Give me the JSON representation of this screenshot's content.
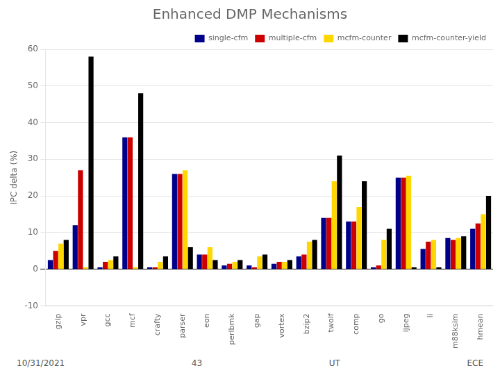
{
  "chart_data": {
    "type": "bar",
    "title": "Enhanced DMP Mechanisms",
    "y_label": "IPC delta (%)",
    "categories": [
      "gzip",
      "vpr",
      "gcc",
      "mcf",
      "crafty",
      "parser",
      "eon",
      "perlbmk",
      "gap",
      "vortex",
      "bzip2",
      "twolf",
      "comp",
      "go",
      "ijpeg",
      "li",
      "m88ksim",
      "hmean"
    ],
    "series": [
      {
        "name": "single-cfm",
        "color": "#00008B",
        "values": [
          2.5,
          12,
          0.5,
          36,
          0.5,
          26,
          4.0,
          1.0,
          1.0,
          1.5,
          3.5,
          14,
          13,
          0.5,
          25,
          5.5,
          8.5,
          11
        ]
      },
      {
        "name": "multiple-cfm",
        "color": "#CC0000",
        "values": [
          5,
          27,
          2.0,
          36,
          0.5,
          26,
          4.0,
          1.5,
          0.5,
          2.0,
          4.0,
          14,
          13,
          1.0,
          25,
          7.5,
          8.0,
          12.5
        ]
      },
      {
        "name": "mcfm-counter",
        "color": "#FFD700",
        "values": [
          7,
          0.5,
          2.5,
          0.5,
          2.0,
          27,
          6.0,
          2.0,
          3.5,
          2.0,
          7.5,
          24,
          17,
          8.0,
          25.5,
          8.0,
          8.5,
          15
        ]
      },
      {
        "name": "mcfm-counter-yield",
        "color": "#000000",
        "values": [
          8,
          58,
          3.5,
          48,
          3.5,
          6.0,
          2.5,
          2.5,
          4.0,
          2.5,
          8.0,
          31,
          24,
          11,
          0.5,
          0.5,
          9.0,
          20
        ]
      }
    ],
    "ylim": [
      -10,
      60
    ],
    "yticks": [
      -10,
      0,
      10,
      20,
      30,
      40,
      50,
      60
    ],
    "grid": true,
    "legend": "upper right",
    "annotations": [
      "10/31/2021",
      "43",
      "UT",
      "ECE"
    ]
  }
}
